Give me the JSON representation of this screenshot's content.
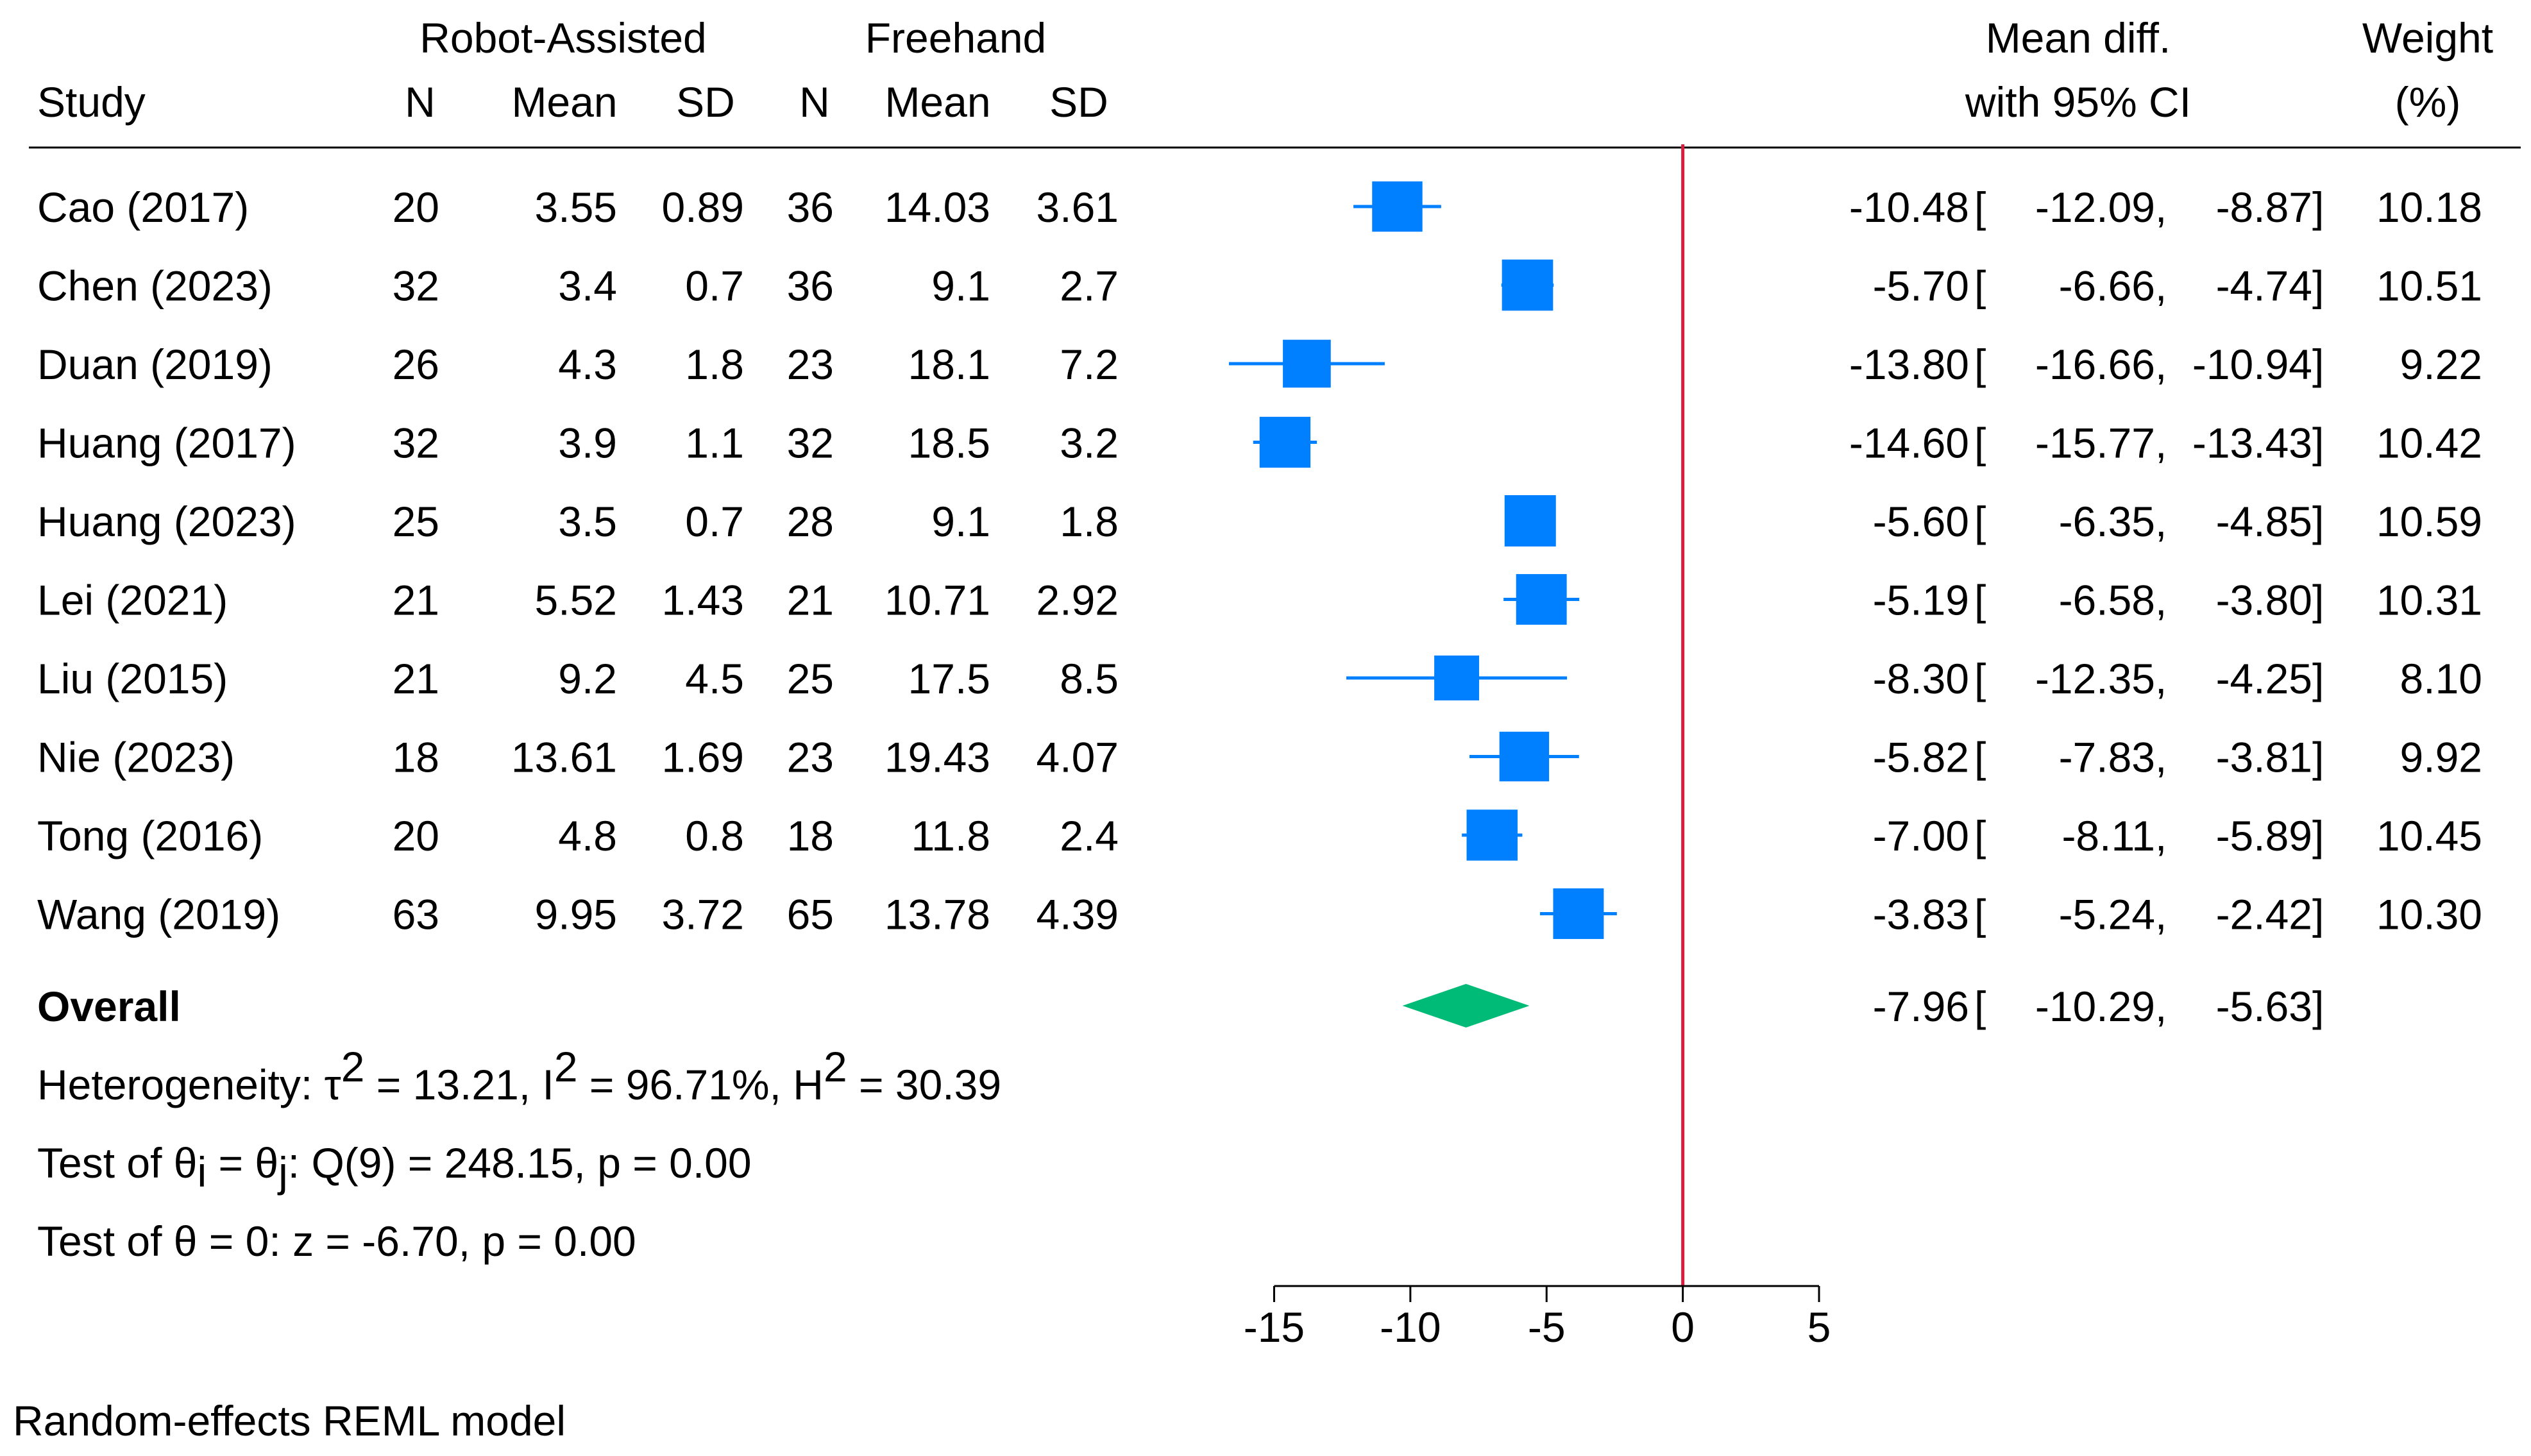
{
  "chart_data": {
    "type": "forest",
    "groups": {
      "treatment": "Robot-Assisted",
      "control": "Freehand"
    },
    "columns": {
      "study": "Study",
      "n1": "N",
      "mean1": "Mean",
      "sd1": "SD",
      "n2": "N",
      "mean2": "Mean",
      "sd2": "SD",
      "effect_line1": "Mean diff.",
      "effect_line2": "with 95% CI",
      "weight_line1": "Weight",
      "weight_line2": "(%)"
    },
    "studies": [
      {
        "study": "Cao (2017)",
        "n1": "20",
        "mean1": "3.55",
        "sd1": "0.89",
        "n2": "36",
        "mean2": "14.03",
        "sd2": "3.61",
        "md": -10.48,
        "lo": -12.09,
        "hi": -8.87,
        "weight": 10.18,
        "md_text": "-10.48",
        "lo_text": "-12.09",
        "hi_text": "-8.87",
        "weight_text": "10.18"
      },
      {
        "study": "Chen (2023)",
        "n1": "32",
        "mean1": "3.4",
        "sd1": "0.7",
        "n2": "36",
        "mean2": "9.1",
        "sd2": "2.7",
        "md": -5.7,
        "lo": -6.66,
        "hi": -4.74,
        "weight": 10.51,
        "md_text": "-5.70",
        "lo_text": "-6.66",
        "hi_text": "-4.74",
        "weight_text": "10.51"
      },
      {
        "study": "Duan (2019)",
        "n1": "26",
        "mean1": "4.3",
        "sd1": "1.8",
        "n2": "23",
        "mean2": "18.1",
        "sd2": "7.2",
        "md": -13.8,
        "lo": -16.66,
        "hi": -10.94,
        "weight": 9.22,
        "md_text": "-13.80",
        "lo_text": "-16.66",
        "hi_text": "-10.94",
        "weight_text": "9.22"
      },
      {
        "study": "Huang (2017)",
        "n1": "32",
        "mean1": "3.9",
        "sd1": "1.1",
        "n2": "32",
        "mean2": "18.5",
        "sd2": "3.2",
        "md": -14.6,
        "lo": -15.77,
        "hi": -13.43,
        "weight": 10.42,
        "md_text": "-14.60",
        "lo_text": "-15.77",
        "hi_text": "-13.43",
        "weight_text": "10.42"
      },
      {
        "study": "Huang (2023)",
        "n1": "25",
        "mean1": "3.5",
        "sd1": "0.7",
        "n2": "28",
        "mean2": "9.1",
        "sd2": "1.8",
        "md": -5.6,
        "lo": -6.35,
        "hi": -4.85,
        "weight": 10.59,
        "md_text": "-5.60",
        "lo_text": "-6.35",
        "hi_text": "-4.85",
        "weight_text": "10.59"
      },
      {
        "study": "Lei (2021)",
        "n1": "21",
        "mean1": "5.52",
        "sd1": "1.43",
        "n2": "21",
        "mean2": "10.71",
        "sd2": "2.92",
        "md": -5.19,
        "lo": -6.58,
        "hi": -3.8,
        "weight": 10.31,
        "md_text": "-5.19",
        "lo_text": "-6.58",
        "hi_text": "-3.80",
        "weight_text": "10.31"
      },
      {
        "study": "Liu (2015)",
        "n1": "21",
        "mean1": "9.2",
        "sd1": "4.5",
        "n2": "25",
        "mean2": "17.5",
        "sd2": "8.5",
        "md": -8.3,
        "lo": -12.35,
        "hi": -4.25,
        "weight": 8.1,
        "md_text": "-8.30",
        "lo_text": "-12.35",
        "hi_text": "-4.25",
        "weight_text": "8.10"
      },
      {
        "study": "Nie (2023)",
        "n1": "18",
        "mean1": "13.61",
        "sd1": "1.69",
        "n2": "23",
        "mean2": "19.43",
        "sd2": "4.07",
        "md": -5.82,
        "lo": -7.83,
        "hi": -3.81,
        "weight": 9.92,
        "md_text": "-5.82",
        "lo_text": "-7.83",
        "hi_text": "-3.81",
        "weight_text": "9.92"
      },
      {
        "study": "Tong (2016)",
        "n1": "20",
        "mean1": "4.8",
        "sd1": "0.8",
        "n2": "18",
        "mean2": "11.8",
        "sd2": "2.4",
        "md": -7.0,
        "lo": -8.11,
        "hi": -5.89,
        "weight": 10.45,
        "md_text": "-7.00",
        "lo_text": "-8.11",
        "hi_text": "-5.89",
        "weight_text": "10.45"
      },
      {
        "study": "Wang (2019)",
        "n1": "63",
        "mean1": "9.95",
        "sd1": "3.72",
        "n2": "65",
        "mean2": "13.78",
        "sd2": "4.39",
        "md": -3.83,
        "lo": -5.24,
        "hi": -2.42,
        "weight": 10.3,
        "md_text": "-3.83",
        "lo_text": "-5.24",
        "hi_text": "-2.42",
        "weight_text": "10.30"
      }
    ],
    "overall": {
      "label": "Overall",
      "md": -7.96,
      "lo": -10.29,
      "hi": -5.63,
      "md_text": "-7.96",
      "lo_text": "-10.29",
      "hi_text": "-5.63"
    },
    "heterogeneity": {
      "prefix": "Heterogeneity: ",
      "tau_symbol": "τ",
      "tau_value": " = 13.21, ",
      "i_symbol": "I",
      "i_value": " = 96.71%, ",
      "h_symbol": "H",
      "h_value": " = 30.39",
      "superscript": "2"
    },
    "test_homogeneity": {
      "prefix": "Test of ",
      "theta": "θ",
      "sub_i": "i",
      "equals": " = ",
      "sub_j": "j",
      "suffix": ": Q(9) = 248.15, p = 0.00"
    },
    "test_overall": "Test of θ = 0: z = -6.70, p = 0.00",
    "model_note": "Random-effects REML model",
    "x_axis": {
      "range": [
        -16.8,
        5
      ],
      "ticks": [
        -15,
        -10,
        -5,
        0,
        5
      ],
      "tick_labels": [
        "-15",
        "-10",
        "-5",
        "0",
        "5"
      ],
      "null_line": 0
    },
    "colors": {
      "study_marker": "#0080ff",
      "overall_diamond": "#00bb77",
      "null_line": "#d81e3c",
      "text": "#000000"
    }
  }
}
